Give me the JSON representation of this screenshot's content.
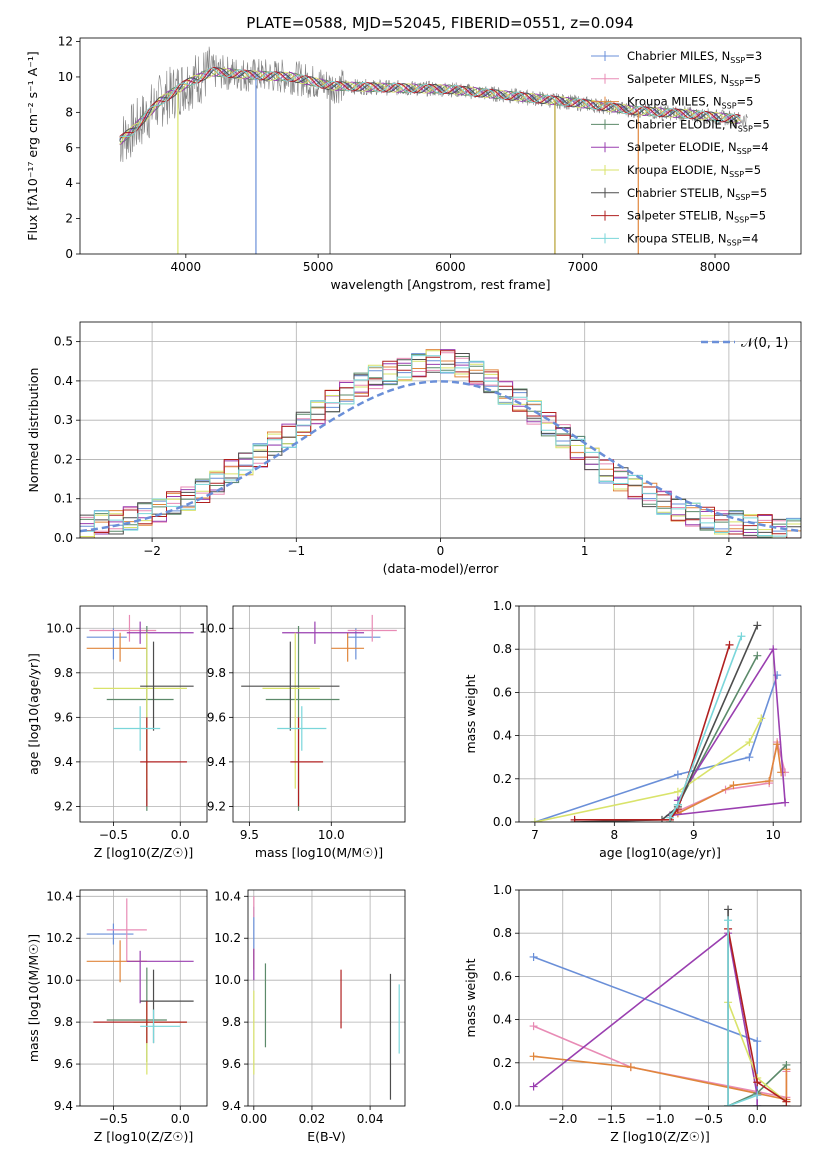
{
  "figure_title": "PLATE=0588, MJD=52045, FIBERID=0551, z=0.094",
  "colors": {
    "series": [
      "#6a8fd8",
      "#e88bb5",
      "#e0863c",
      "#5c8a6a",
      "#9a3fb0",
      "#d9e36a",
      "#4d4d4d",
      "#b02020",
      "#7ad6da"
    ],
    "data": "#808080",
    "normal": "#6a8fd8",
    "grid": "#b0b0b0"
  },
  "chart_data": [
    {
      "type": "line",
      "title": "PLATE=0588, MJD=52045, FIBERID=0551, z=0.094",
      "xlabel": "wavelength [Angstrom, rest frame]",
      "ylabel": "Flux [fλ10⁻¹⁷ erg cm⁻² s⁻¹ A⁻¹]",
      "xlim": [
        3200,
        8650
      ],
      "ylim": [
        0,
        12.2
      ],
      "xticks": [
        "4000",
        "5000",
        "6000",
        "7000",
        "8000"
      ],
      "yticks": [
        "0",
        "2",
        "4",
        "6",
        "8",
        "10",
        "12"
      ],
      "grid": false,
      "legend_position": "top-right",
      "legend": [
        "Chabrier MILES, N_SSP=3",
        "Salpeter MILES, N_SSP=5",
        "Kroupa MILES, N_SSP=5",
        "Chabrier ELODIE, N_SSP=5",
        "Salpeter ELODIE, N_SSP=4",
        "Kroupa ELODIE, N_SSP=5",
        "Chabrier STELIB, N_SSP=5",
        "Salpeter STELIB, N_SSP=5",
        "Kroupa STELIB, N_SSP=4"
      ],
      "continuum_x": [
        3500,
        3600,
        3800,
        4000,
        4200,
        4500,
        4800,
        5100,
        5500,
        6000,
        6500,
        7000,
        7400,
        7800,
        8200
      ],
      "continuum_y": [
        6.4,
        7.0,
        8.6,
        9.6,
        10.3,
        10.1,
        10.0,
        9.5,
        9.4,
        9.3,
        8.9,
        8.5,
        8.1,
        7.9,
        7.6
      ],
      "spikes": [
        {
          "x": 4530,
          "color": "#6a8fd8"
        },
        {
          "x": 5090,
          "color": "#808080"
        },
        {
          "x": 6790,
          "color": "#b5a030"
        },
        {
          "x": 7420,
          "color": "#e0863c"
        },
        {
          "x": 3940,
          "color": "#d9e36a"
        }
      ]
    },
    {
      "type": "bar",
      "xlabel": "(data-model)/error",
      "ylabel": "Normed distribution",
      "xlim": [
        -2.5,
        2.5
      ],
      "ylim": [
        0,
        0.55
      ],
      "xticks": [
        "−2",
        "−1",
        "0",
        "1",
        "2"
      ],
      "yticks": [
        "0.0",
        "0.1",
        "0.2",
        "0.3",
        "0.4",
        "0.5"
      ],
      "grid": true,
      "legend_position": "top-right",
      "legend": [
        "𝒩(0, 1)"
      ],
      "bin_width": 0.1,
      "histogram": [
        0.03,
        0.04,
        0.04,
        0.05,
        0.06,
        0.07,
        0.09,
        0.1,
        0.12,
        0.14,
        0.17,
        0.19,
        0.21,
        0.24,
        0.26,
        0.29,
        0.32,
        0.35,
        0.37,
        0.39,
        0.41,
        0.42,
        0.43,
        0.44,
        0.45,
        0.45,
        0.44,
        0.42,
        0.4,
        0.37,
        0.35,
        0.32,
        0.29,
        0.26,
        0.23,
        0.2,
        0.17,
        0.15,
        0.13,
        0.11,
        0.09,
        0.07,
        0.06,
        0.05,
        0.04,
        0.04,
        0.03,
        0.03,
        0.02,
        0.02
      ]
    },
    {
      "type": "scatter",
      "xlabel": "Z [log10(Z/Z☉)]",
      "ylabel": "age  [log10(age/yr)]",
      "xlim": [
        -0.75,
        0.2
      ],
      "ylim": [
        9.13,
        10.1
      ],
      "xticks": [
        "−0.5",
        "0.0"
      ],
      "yticks": [
        "9.2",
        "9.4",
        "9.6",
        "9.8",
        "10.0"
      ],
      "grid": true,
      "points": [
        {
          "x": -0.5,
          "y": 9.96,
          "xerr": [
            0.2,
            0.1
          ],
          "yerr": [
            0.1,
            0.04
          ]
        },
        {
          "x": -0.38,
          "y": 9.99,
          "xerr": [
            0.3,
            0.2
          ],
          "yerr": [
            0.05,
            0.07
          ]
        },
        {
          "x": -0.45,
          "y": 9.91,
          "xerr": [
            0.25,
            0.2
          ],
          "yerr": [
            0.06,
            0.07
          ]
        },
        {
          "x": -0.25,
          "y": 9.68,
          "xerr": [
            0.3,
            0.2
          ],
          "yerr": [
            0.5,
            0.33
          ]
        },
        {
          "x": -0.3,
          "y": 9.98,
          "xerr": [
            0.1,
            0.4
          ],
          "yerr": [
            0.05,
            0.05
          ]
        },
        {
          "x": -0.25,
          "y": 9.73,
          "xerr": [
            0.4,
            0.3
          ],
          "yerr": [
            0.45,
            0.25
          ]
        },
        {
          "x": -0.2,
          "y": 9.74,
          "xerr": [
            0.1,
            0.3
          ],
          "yerr": [
            0.2,
            0.2
          ]
        },
        {
          "x": -0.25,
          "y": 9.4,
          "xerr": [
            0.05,
            0.3
          ],
          "yerr": [
            0.2,
            0.2
          ]
        },
        {
          "x": -0.3,
          "y": 9.55,
          "xerr": [
            0.2,
            0.15
          ],
          "yerr": [
            0.1,
            0.1
          ]
        }
      ]
    },
    {
      "type": "scatter",
      "xlabel": "mass [log10(M/M☉)]",
      "ylabel": "",
      "xlim": [
        9.4,
        10.45
      ],
      "ylim": [
        9.13,
        10.1
      ],
      "xticks": [
        "9.5",
        "10.0"
      ],
      "yticks": [
        "9.2",
        "9.4",
        "9.6",
        "9.8",
        "10.0"
      ],
      "grid": true,
      "points": [
        {
          "x": 10.15,
          "y": 9.96,
          "xerr": [
            0.05,
            0.15
          ],
          "yerr": [
            0.1,
            0.04
          ]
        },
        {
          "x": 10.25,
          "y": 9.99,
          "xerr": [
            0.15,
            0.15
          ],
          "yerr": [
            0.05,
            0.07
          ]
        },
        {
          "x": 10.1,
          "y": 9.91,
          "xerr": [
            0.1,
            0.1
          ],
          "yerr": [
            0.06,
            0.07
          ]
        },
        {
          "x": 9.8,
          "y": 9.68,
          "xerr": [
            0.2,
            0.25
          ],
          "yerr": [
            0.5,
            0.33
          ]
        },
        {
          "x": 9.9,
          "y": 9.98,
          "xerr": [
            0.2,
            0.3
          ],
          "yerr": [
            0.05,
            0.05
          ]
        },
        {
          "x": 9.78,
          "y": 9.73,
          "xerr": [
            0.2,
            0.15
          ],
          "yerr": [
            0.45,
            0.25
          ]
        },
        {
          "x": 9.75,
          "y": 9.74,
          "xerr": [
            0.3,
            0.3
          ],
          "yerr": [
            0.2,
            0.2
          ]
        },
        {
          "x": 9.8,
          "y": 9.4,
          "xerr": [
            0.05,
            0.15
          ],
          "yerr": [
            0.2,
            0.2
          ]
        },
        {
          "x": 9.82,
          "y": 9.55,
          "xerr": [
            0.15,
            0.15
          ],
          "yerr": [
            0.1,
            0.1
          ]
        }
      ]
    },
    {
      "type": "line",
      "xlabel": "age  [log10(age/yr)]",
      "ylabel": "mass weight",
      "xlim": [
        6.8,
        10.35
      ],
      "ylim": [
        0,
        1.0
      ],
      "xticks": [
        "7",
        "8",
        "9",
        "10"
      ],
      "yticks": [
        "0.0",
        "0.2",
        "0.4",
        "0.6",
        "0.8",
        "1.0"
      ],
      "grid": true,
      "series": [
        {
          "x": [
            7.0,
            8.8,
            9.7,
            10.05
          ],
          "y": [
            0.0,
            0.22,
            0.3,
            0.68
          ]
        },
        {
          "x": [
            8.8,
            9.4,
            9.95,
            10.05,
            10.15
          ],
          "y": [
            0.05,
            0.15,
            0.18,
            0.37,
            0.23
          ]
        },
        {
          "x": [
            8.8,
            9.5,
            9.95,
            10.05,
            10.1
          ],
          "y": [
            0.04,
            0.17,
            0.19,
            0.36,
            0.23
          ]
        },
        {
          "x": [
            8.7,
            8.8,
            9.8
          ],
          "y": [
            0.0,
            0.08,
            0.77
          ]
        },
        {
          "x": [
            8.8,
            10.0,
            10.15,
            8.7
          ],
          "y": [
            0.1,
            0.8,
            0.09,
            0.03
          ]
        },
        {
          "x": [
            7.0,
            8.8,
            9.7,
            9.85
          ],
          "y": [
            0.0,
            0.14,
            0.37,
            0.48
          ]
        },
        {
          "x": [
            7.5,
            8.6,
            8.8,
            9.8
          ],
          "y": [
            0.0,
            0.01,
            0.07,
            0.91
          ]
        },
        {
          "x": [
            7.5,
            8.7,
            8.8,
            9.45
          ],
          "y": [
            0.01,
            0.01,
            0.06,
            0.82
          ]
        },
        {
          "x": [
            8.7,
            8.8,
            9.6
          ],
          "y": [
            0.02,
            0.08,
            0.86
          ]
        }
      ]
    },
    {
      "type": "scatter",
      "xlabel": "Z [log10(Z/Z☉)]",
      "ylabel": "mass [log10(M/M☉)]",
      "xlim": [
        -0.75,
        0.2
      ],
      "ylim": [
        9.4,
        10.43
      ],
      "xticks": [
        "−0.5",
        "0.0"
      ],
      "yticks": [
        "9.4",
        "9.6",
        "9.8",
        "10.0",
        "10.2",
        "10.4"
      ],
      "grid": true,
      "points": [
        {
          "x": -0.5,
          "y": 10.22,
          "xerr": [
            0.2,
            0.15
          ],
          "yerr": [
            0.05,
            0.05
          ]
        },
        {
          "x": -0.4,
          "y": 10.24,
          "xerr": [
            0.15,
            0.15
          ],
          "yerr": [
            0.15,
            0.15
          ]
        },
        {
          "x": -0.45,
          "y": 10.09,
          "xerr": [
            0.25,
            0.2
          ],
          "yerr": [
            0.1,
            0.1
          ]
        },
        {
          "x": -0.25,
          "y": 9.81,
          "xerr": [
            0.3,
            0.15
          ],
          "yerr": [
            0.2,
            0.25
          ]
        },
        {
          "x": -0.3,
          "y": 10.09,
          "xerr": [
            0.1,
            0.4
          ],
          "yerr": [
            0.2,
            0.05
          ]
        },
        {
          "x": -0.25,
          "y": 9.8,
          "xerr": [
            0.1,
            0.3
          ],
          "yerr": [
            0.25,
            0.1
          ]
        },
        {
          "x": -0.2,
          "y": 9.9,
          "xerr": [
            0.1,
            0.3
          ],
          "yerr": [
            0.2,
            0.15
          ]
        },
        {
          "x": -0.25,
          "y": 9.8,
          "xerr": [
            0.4,
            0.3
          ],
          "yerr": [
            0.1,
            0.1
          ]
        },
        {
          "x": -0.2,
          "y": 9.78,
          "xerr": [
            0.1,
            0.2
          ],
          "yerr": [
            0.08,
            0.08
          ]
        }
      ]
    },
    {
      "type": "scatter",
      "xlabel": "E(B-V)",
      "ylabel": "",
      "xlim": [
        -0.002,
        0.052
      ],
      "ylim": [
        9.4,
        10.43
      ],
      "xticks": [
        "0.00",
        "0.02",
        "0.04"
      ],
      "yticks": [
        "9.4",
        "9.6",
        "9.8",
        "10.0",
        "10.2",
        "10.4"
      ],
      "grid": true,
      "points": [
        {
          "x": 0.0,
          "y": 10.25,
          "xerr": [
            0,
            0
          ],
          "yerr": [
            0.1,
            0.1
          ]
        },
        {
          "x": 0.0,
          "y": 10.35,
          "xerr": [
            0,
            0
          ],
          "yerr": [
            0.05,
            0.05
          ]
        },
        {
          "x": 0.0,
          "y": 10.1,
          "xerr": [
            0,
            0
          ],
          "yerr": [
            0.05,
            0.05
          ]
        },
        {
          "x": 0.004,
          "y": 9.88,
          "xerr": [
            0,
            0
          ],
          "yerr": [
            0.2,
            0.2
          ]
        },
        {
          "x": 0.0,
          "y": 10.1,
          "xerr": [
            0,
            0
          ],
          "yerr": [
            0.1,
            0.05
          ]
        },
        {
          "x": 0.0,
          "y": 9.8,
          "xerr": [
            0,
            0
          ],
          "yerr": [
            0.25,
            0.15
          ]
        },
        {
          "x": 0.047,
          "y": 9.83,
          "xerr": [
            0,
            0
          ],
          "yerr": [
            0.4,
            0.2
          ]
        },
        {
          "x": 0.03,
          "y": 9.91,
          "xerr": [
            0,
            0
          ],
          "yerr": [
            0.14,
            0.14
          ]
        },
        {
          "x": 0.05,
          "y": 9.8,
          "xerr": [
            0,
            0
          ],
          "yerr": [
            0.15,
            0.18
          ]
        }
      ]
    },
    {
      "type": "line",
      "xlabel": "Z [log10(Z/Z☉)]",
      "ylabel": "mass weight",
      "xlim": [
        -2.45,
        0.45
      ],
      "ylim": [
        0,
        1.0
      ],
      "xticks": [
        "−2.0",
        "−1.5",
        "−1.0",
        "−0.5",
        "0.0"
      ],
      "yticks": [
        "0.0",
        "0.2",
        "0.4",
        "0.6",
        "0.8",
        "1.0"
      ],
      "grid": true,
      "series": [
        {
          "x": [
            -2.3,
            0.0,
            0.0
          ],
          "y": [
            0.69,
            0.3,
            0.0
          ]
        },
        {
          "x": [
            -2.3,
            -1.3,
            0.3,
            0.3
          ],
          "y": [
            0.37,
            0.18,
            0.04,
            0.16
          ]
        },
        {
          "x": [
            -2.3,
            -1.3,
            0.3,
            0.3
          ],
          "y": [
            0.23,
            0.18,
            0.03,
            0.17
          ]
        },
        {
          "x": [
            -0.3,
            0.0,
            0.3
          ],
          "y": [
            0.0,
            0.06,
            0.19
          ]
        },
        {
          "x": [
            -2.3,
            -0.3,
            0.0,
            0.0
          ],
          "y": [
            0.09,
            0.8,
            0.05,
            0.0
          ]
        },
        {
          "x": [
            -0.3,
            0.0,
            0.3
          ],
          "y": [
            0.48,
            0.13,
            0.02
          ]
        },
        {
          "x": [
            -0.3,
            -0.3,
            0.3
          ],
          "y": [
            0.91,
            0.0,
            0.0
          ]
        },
        {
          "x": [
            -0.3,
            0.0,
            0.3
          ],
          "y": [
            0.82,
            0.11,
            0.02
          ]
        },
        {
          "x": [
            -0.3,
            -0.3,
            0.0
          ],
          "y": [
            0.86,
            0.0,
            0.05
          ]
        }
      ]
    }
  ]
}
